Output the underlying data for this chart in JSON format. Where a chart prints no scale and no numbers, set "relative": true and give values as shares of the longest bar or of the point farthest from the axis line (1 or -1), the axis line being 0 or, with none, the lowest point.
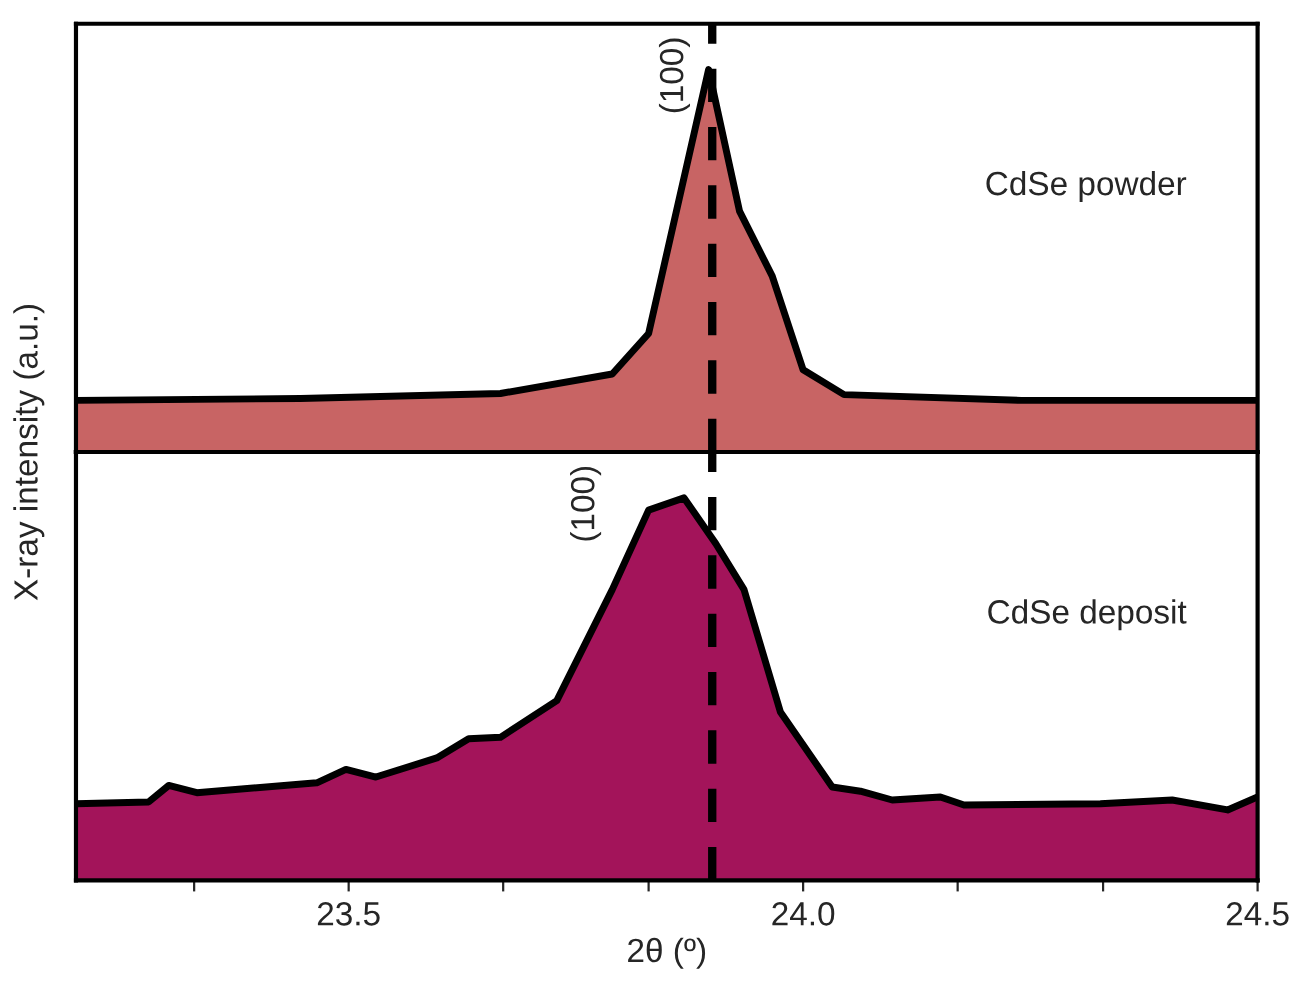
{
  "chart_data": [
    {
      "type": "area",
      "relative": true,
      "ylabel": "X-ray intensity (a.u.)",
      "xlim": [
        23.2,
        24.5
      ],
      "series": [
        {
          "name": "CdSe powder",
          "color": "#c86464",
          "x": [
            23.2,
            23.447,
            23.667,
            23.79,
            23.83,
            23.896,
            23.93,
            23.966,
            24.0,
            24.045,
            24.24,
            24.5
          ],
          "values": [
            0.135,
            0.14,
            0.153,
            0.204,
            0.31,
            1,
            0.63,
            0.46,
            0.215,
            0.15,
            0.135,
            0.135
          ]
        }
      ],
      "ref_lines": [
        {
          "axis": "x",
          "value": 23.9,
          "line_style": "dashed",
          "color": "#000000"
        }
      ],
      "annotations": [
        "(100)"
      ]
    },
    {
      "type": "area",
      "relative": true,
      "xlabel": "2θ (º)",
      "xlim": [
        23.2,
        24.5
      ],
      "xticks": [
        {
          "value": 23.33,
          "label": null
        },
        23.5,
        {
          "value": 23.67,
          "label": null
        },
        {
          "value": 23.83,
          "label": null
        },
        {
          "value": 24.0,
          "label": "24.0"
        },
        {
          "value": 24.17,
          "label": null
        },
        {
          "value": 24.33,
          "label": null
        },
        24.5
      ],
      "series": [
        {
          "name": "CdSe deposit",
          "color": "#a3145a",
          "x": [
            23.2,
            23.28,
            23.302,
            23.333,
            23.465,
            23.497,
            23.53,
            23.597,
            23.632,
            23.667,
            23.729,
            23.79,
            23.83,
            23.869,
            23.904,
            23.935,
            23.975,
            24.032,
            24.063,
            24.098,
            24.151,
            24.177,
            24.327,
            24.406,
            24.467,
            24.5
          ],
          "values": [
            0.2,
            0.205,
            0.248,
            0.229,
            0.255,
            0.29,
            0.27,
            0.32,
            0.37,
            0.374,
            0.47,
            0.76,
            0.968,
            1,
            0.88,
            0.76,
            0.44,
            0.244,
            0.233,
            0.21,
            0.218,
            0.197,
            0.2,
            0.21,
            0.184,
            0.218
          ]
        }
      ],
      "ref_lines": [
        {
          "axis": "x",
          "value": 23.9,
          "line_style": "dashed",
          "color": "#000000"
        }
      ],
      "annotations": [
        "(100)"
      ]
    }
  ]
}
